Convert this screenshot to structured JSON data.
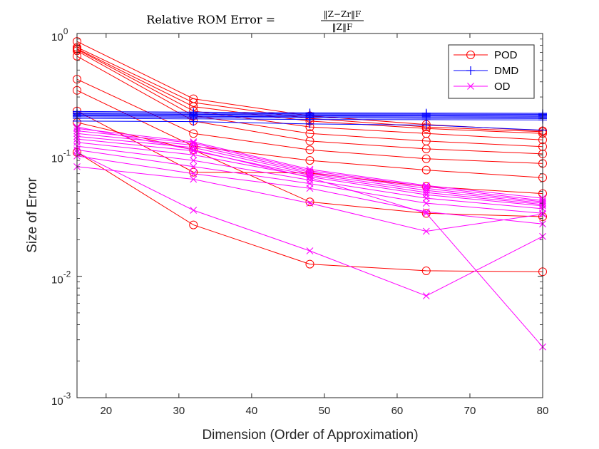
{
  "chart_data": {
    "type": "line",
    "title": "Relative ROM Error = ‖Z − Zᵣ‖F / ‖Z‖F",
    "title_parts": {
      "prefix": "Relative ROM Error =",
      "numerator": "‖Z−Zr‖F",
      "denominator": "‖Z‖F"
    },
    "xlabel": "Dimension (Order of Approximation)",
    "ylabel": "Size of Error",
    "x": [
      16,
      32,
      48,
      64,
      80
    ],
    "xlim": [
      16,
      80
    ],
    "ylim": [
      0.001,
      1
    ],
    "yscale": "log",
    "xticks": [
      20,
      30,
      40,
      50,
      60,
      70,
      80
    ],
    "yticks": [
      {
        "value": 0.001,
        "base": "10",
        "exp": "-3"
      },
      {
        "value": 0.01,
        "base": "10",
        "exp": "-2"
      },
      {
        "value": 0.1,
        "base": "10",
        "exp": "-1"
      },
      {
        "value": 1,
        "base": "10",
        "exp": "0"
      }
    ],
    "grid": false,
    "legend_position": "top-right",
    "groups": [
      {
        "name": "POD",
        "color": "#ff0000",
        "marker": "circle",
        "series": [
          [
            0.86,
            0.29,
            0.21,
            0.178,
            0.158
          ],
          [
            0.77,
            0.27,
            0.2,
            0.17,
            0.155
          ],
          [
            0.75,
            0.25,
            0.19,
            0.165,
            0.15
          ],
          [
            0.74,
            0.23,
            0.17,
            0.15,
            0.133
          ],
          [
            0.72,
            0.21,
            0.15,
            0.13,
            0.117
          ],
          [
            0.65,
            0.19,
            0.13,
            0.112,
            0.102
          ],
          [
            0.42,
            0.15,
            0.11,
            0.093,
            0.085
          ],
          [
            0.34,
            0.118,
            0.09,
            0.075,
            0.065
          ],
          [
            0.23,
            0.072,
            0.071,
            0.055,
            0.048
          ],
          [
            0.185,
            0.11,
            0.041,
            0.033,
            0.031
          ],
          [
            0.105,
            0.0265,
            0.0126,
            0.0111,
            0.0109
          ]
        ]
      },
      {
        "name": "DMD",
        "color": "#0000ff",
        "marker": "plus",
        "series": [
          [
            0.228,
            0.225,
            0.222,
            0.221,
            0.22
          ],
          [
            0.222,
            0.22,
            0.218,
            0.217,
            0.216
          ],
          [
            0.218,
            0.216,
            0.214,
            0.213,
            0.212
          ],
          [
            0.214,
            0.212,
            0.21,
            0.209,
            0.208
          ],
          [
            0.21,
            0.208,
            0.206,
            0.205,
            0.204
          ],
          [
            0.206,
            0.204,
            0.202,
            0.2,
            0.199
          ],
          [
            0.2,
            0.198,
            0.196,
            0.195,
            0.194
          ],
          [
            0.19,
            0.188,
            0.18,
            0.176,
            0.16
          ]
        ]
      },
      {
        "name": "OD",
        "color": "#ff00ff",
        "marker": "x",
        "series": [
          [
            0.165,
            0.128,
            0.076,
            0.056,
            0.044
          ],
          [
            0.158,
            0.125,
            0.074,
            0.055,
            0.042
          ],
          [
            0.15,
            0.12,
            0.072,
            0.053,
            0.041
          ],
          [
            0.142,
            0.115,
            0.07,
            0.051,
            0.04
          ],
          [
            0.135,
            0.108,
            0.068,
            0.049,
            0.039
          ],
          [
            0.127,
            0.1,
            0.066,
            0.047,
            0.038
          ],
          [
            0.118,
            0.09,
            0.062,
            0.044,
            0.036
          ],
          [
            0.11,
            0.08,
            0.058,
            0.04,
            0.033
          ],
          [
            0.098,
            0.07,
            0.053,
            0.034,
            0.027
          ],
          [
            0.08,
            0.063,
            0.04,
            0.0235,
            0.0325
          ],
          [
            0.105,
            0.035,
            0.0162,
            0.0069,
            0.0213
          ],
          [
            0.17,
            0.11,
            0.065,
            0.033,
            0.00262
          ]
        ]
      }
    ]
  }
}
